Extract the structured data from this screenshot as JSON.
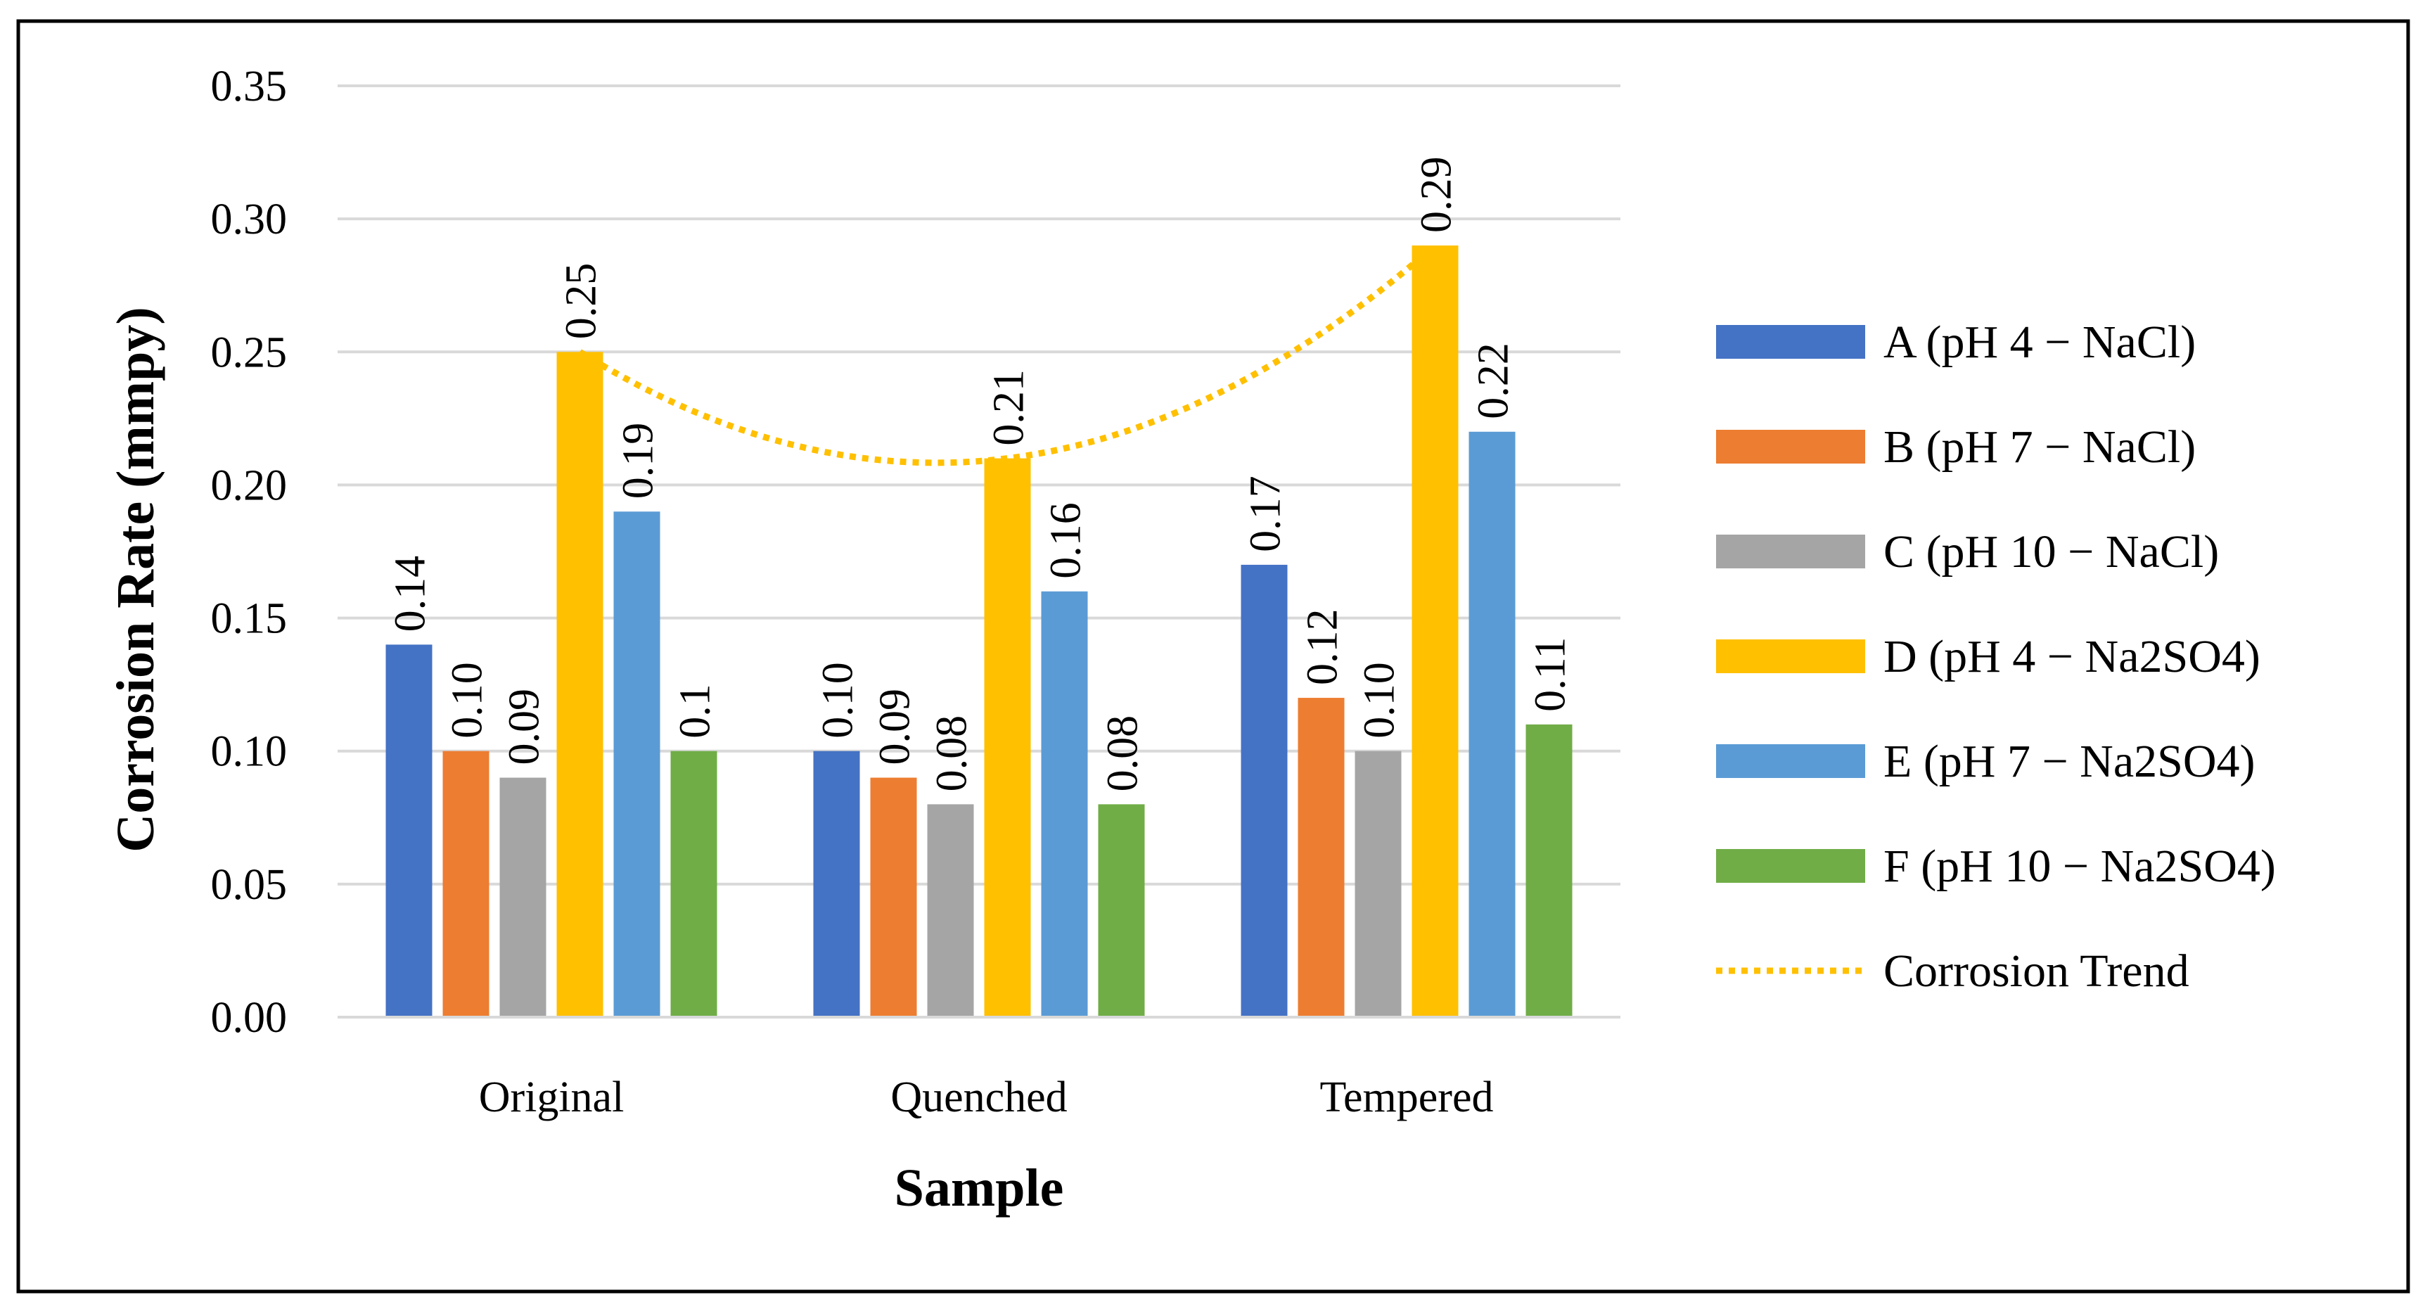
{
  "chart_data": {
    "type": "bar",
    "title": "",
    "xlabel": "Sample",
    "ylabel": "Corrosion Rate (mmpy)",
    "ylim": [
      0,
      0.35
    ],
    "yticks": [
      0,
      0.05,
      0.1,
      0.15,
      0.2,
      0.25,
      0.3,
      0.35
    ],
    "ytick_labels": [
      "0.00",
      "0.05",
      "0.10",
      "0.15",
      "0.20",
      "0.25",
      "0.30",
      "0.35"
    ],
    "grid": true,
    "legend_position": "right",
    "categories": [
      "Original",
      "Quenched",
      "Tempered"
    ],
    "series": [
      {
        "name": "A (pH 4 − NaCl)",
        "color": "#4472C4",
        "values": [
          0.14,
          0.1,
          0.17
        ],
        "labels": [
          "0.14",
          "0.10",
          "0.17"
        ]
      },
      {
        "name": "B (pH 7 − NaCl)",
        "color": "#ED7D31",
        "values": [
          0.1,
          0.09,
          0.12
        ],
        "labels": [
          "0.10",
          "0.09",
          "0.12"
        ]
      },
      {
        "name": "C (pH 10 − NaCl)",
        "color": "#A5A5A5",
        "values": [
          0.09,
          0.08,
          0.1
        ],
        "labels": [
          "0.09",
          "0.08",
          "0.10"
        ]
      },
      {
        "name": "D (pH 4 − Na2SO4)",
        "color": "#FFC000",
        "values": [
          0.25,
          0.21,
          0.29
        ],
        "labels": [
          "0.25",
          "0.21",
          "0.29"
        ]
      },
      {
        "name": "E (pH 7 − Na2SO4)",
        "color": "#5B9BD5",
        "values": [
          0.19,
          0.16,
          0.22
        ],
        "labels": [
          "0.19",
          "0.16",
          "0.22"
        ]
      },
      {
        "name": "F (pH 10 − Na2SO4)",
        "color": "#70AD47",
        "values": [
          0.1,
          0.08,
          0.11
        ],
        "labels": [
          "0.1",
          "0.08",
          "0.11"
        ]
      }
    ],
    "trend": {
      "name": "Corrosion Trend",
      "color": "#FFC000",
      "style": "dotted",
      "follows_series": "D (pH 4 − Na2SO4)",
      "values": [
        0.25,
        0.21,
        0.29
      ]
    }
  }
}
